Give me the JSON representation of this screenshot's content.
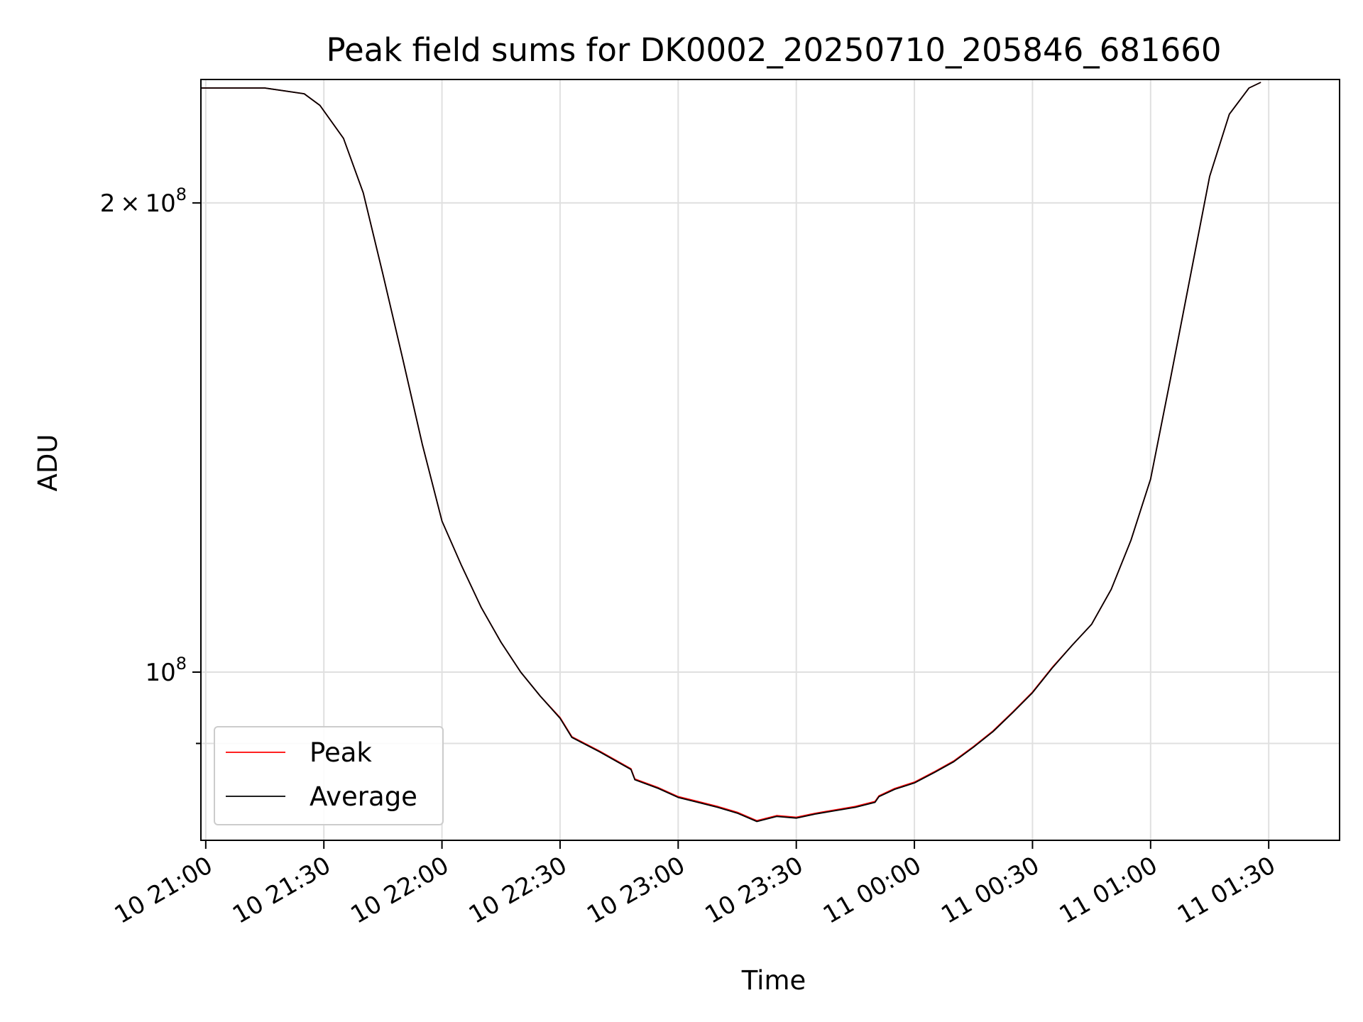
{
  "chart_data": {
    "type": "line",
    "title": "Peak field sums for DK0002_20250710_205846_681660",
    "xlabel": "Time",
    "ylabel": "ADU",
    "yscale": "log",
    "xlim": [
      "2025-07-10 20:58:46",
      "2025-07-11 01:48:00"
    ],
    "ylim": [
      78000000,
      240000000
    ],
    "x_ticks": [
      "10 21:00",
      "10 21:30",
      "10 22:00",
      "10 22:30",
      "10 23:00",
      "10 23:30",
      "11 00:00",
      "11 00:30",
      "11 01:00",
      "11 01:30"
    ],
    "y_ticks": [
      {
        "value": 200000000,
        "mantissa": "2",
        "exponent": "8"
      },
      {
        "value": 100000000,
        "mantissa": "",
        "exponent": "8"
      }
    ],
    "y_minor_ticks": [
      90000000
    ],
    "grid": true,
    "legend": "lower-left",
    "series": [
      {
        "name": "Peak",
        "color": "#ff0000",
        "x": [
          "2025-07-10 20:58:46",
          "2025-07-10 21:15:00",
          "2025-07-10 21:25:00",
          "2025-07-10 21:29:00",
          "2025-07-10 21:35:00",
          "2025-07-10 21:40:00",
          "2025-07-10 21:45:00",
          "2025-07-10 21:50:00",
          "2025-07-10 21:55:00",
          "2025-07-10 22:00:00",
          "2025-07-10 22:05:00",
          "2025-07-10 22:10:00",
          "2025-07-10 22:15:00",
          "2025-07-10 22:20:00",
          "2025-07-10 22:25:00",
          "2025-07-10 22:30:00",
          "2025-07-10 22:33:00",
          "2025-07-10 22:40:00",
          "2025-07-10 22:48:00",
          "2025-07-10 22:49:00",
          "2025-07-10 22:55:00",
          "2025-07-10 23:00:00",
          "2025-07-10 23:05:00",
          "2025-07-10 23:10:00",
          "2025-07-10 23:15:00",
          "2025-07-10 23:20:00",
          "2025-07-10 23:25:00",
          "2025-07-10 23:30:00",
          "2025-07-10 23:35:00",
          "2025-07-10 23:40:00",
          "2025-07-10 23:45:00",
          "2025-07-10 23:50:00",
          "2025-07-10 23:51:00",
          "2025-07-10 23:55:00",
          "2025-07-11 00:00:00",
          "2025-07-11 00:05:00",
          "2025-07-11 00:10:00",
          "2025-07-11 00:15:00",
          "2025-07-11 00:20:00",
          "2025-07-11 00:25:00",
          "2025-07-11 00:30:00",
          "2025-07-11 00:35:00",
          "2025-07-11 00:40:00",
          "2025-07-11 00:45:00",
          "2025-07-11 00:50:00",
          "2025-07-11 00:55:00",
          "2025-07-11 01:00:00",
          "2025-07-11 01:05:00",
          "2025-07-11 01:10:00",
          "2025-07-11 01:15:00",
          "2025-07-11 01:20:00",
          "2025-07-11 01:25:00",
          "2025-07-11 01:28:00"
        ],
        "y": [
          237000000,
          237000000,
          235000000,
          231000000,
          220000000,
          203000000,
          180000000,
          159000000,
          140000000,
          125000000,
          117000000,
          110000000,
          104500000,
          100000000,
          96500000,
          93500000,
          90900000,
          89000000,
          86700000,
          85400000,
          84300000,
          83200000,
          82600000,
          82000000,
          81300000,
          80300000,
          80900000,
          80700000,
          81200000,
          81600000,
          82000000,
          82600000,
          83300000,
          84200000,
          85000000,
          86300000,
          87700000,
          89600000,
          91700000,
          94300000,
          97100000,
          100700000,
          104000000,
          107300000,
          113000000,
          121500000,
          133000000,
          154000000,
          179000000,
          208000000,
          228000000,
          237000000,
          239000000
        ]
      },
      {
        "name": "Average",
        "color": "#000000",
        "x": [
          "2025-07-10 20:58:46",
          "2025-07-10 21:15:00",
          "2025-07-10 21:25:00",
          "2025-07-10 21:29:00",
          "2025-07-10 21:35:00",
          "2025-07-10 21:40:00",
          "2025-07-10 21:45:00",
          "2025-07-10 21:50:00",
          "2025-07-10 21:55:00",
          "2025-07-10 22:00:00",
          "2025-07-10 22:05:00",
          "2025-07-10 22:10:00",
          "2025-07-10 22:15:00",
          "2025-07-10 22:20:00",
          "2025-07-10 22:25:00",
          "2025-07-10 22:30:00",
          "2025-07-10 22:33:00",
          "2025-07-10 22:40:00",
          "2025-07-10 22:48:00",
          "2025-07-10 22:49:00",
          "2025-07-10 22:55:00",
          "2025-07-10 23:00:00",
          "2025-07-10 23:05:00",
          "2025-07-10 23:10:00",
          "2025-07-10 23:15:00",
          "2025-07-10 23:20:00",
          "2025-07-10 23:25:00",
          "2025-07-10 23:30:00",
          "2025-07-10 23:35:00",
          "2025-07-10 23:40:00",
          "2025-07-10 23:45:00",
          "2025-07-10 23:50:00",
          "2025-07-10 23:51:00",
          "2025-07-10 23:55:00",
          "2025-07-11 00:00:00",
          "2025-07-11 00:05:00",
          "2025-07-11 00:10:00",
          "2025-07-11 00:15:00",
          "2025-07-11 00:20:00",
          "2025-07-11 00:25:00",
          "2025-07-11 00:30:00",
          "2025-07-11 00:35:00",
          "2025-07-11 00:40:00",
          "2025-07-11 00:45:00",
          "2025-07-11 00:50:00",
          "2025-07-11 00:55:00",
          "2025-07-11 01:00:00",
          "2025-07-11 01:05:00",
          "2025-07-11 01:10:00",
          "2025-07-11 01:15:00",
          "2025-07-11 01:20:00",
          "2025-07-11 01:25:00",
          "2025-07-11 01:28:00"
        ],
        "y": [
          237000000,
          237000000,
          235000000,
          231000000,
          220000000,
          203000000,
          180000000,
          159000000,
          140000000,
          125000000,
          117000000,
          110000000,
          104500000,
          100000000,
          96500000,
          93400000,
          90800000,
          88900000,
          86600000,
          85300000,
          84200000,
          83100000,
          82500000,
          81900000,
          81200000,
          80200000,
          80800000,
          80600000,
          81100000,
          81500000,
          81900000,
          82500000,
          83200000,
          84100000,
          84900000,
          86200000,
          87600000,
          89500000,
          91600000,
          94200000,
          97000000,
          100600000,
          104000000,
          107300000,
          113000000,
          121500000,
          133000000,
          154000000,
          179000000,
          208000000,
          228000000,
          237000000,
          239000000
        ]
      }
    ]
  }
}
